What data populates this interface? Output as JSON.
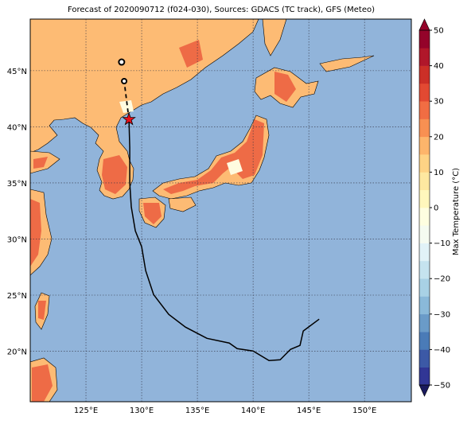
{
  "title": "Forecast of 2020090712 (f024-030), Sources: GDACS (TC track), GFS (Meteo)",
  "map": {
    "lon_range": [
      120,
      154.2
    ],
    "lat_range": [
      15.5,
      49.6
    ],
    "lon_ticks": [
      {
        "value": 125,
        "label": "125°E"
      },
      {
        "value": 130,
        "label": "130°E"
      },
      {
        "value": 135,
        "label": "135°E"
      },
      {
        "value": 140,
        "label": "140°E"
      },
      {
        "value": 145,
        "label": "145°E"
      },
      {
        "value": 150,
        "label": "150°E"
      }
    ],
    "lat_ticks": [
      {
        "value": 20,
        "label": "20°N"
      },
      {
        "value": 25,
        "label": "25°N"
      },
      {
        "value": 30,
        "label": "30°N"
      },
      {
        "value": 35,
        "label": "35°N"
      },
      {
        "value": 40,
        "label": "40°N"
      },
      {
        "value": 45,
        "label": "45°N"
      }
    ],
    "track": {
      "lon": [
        128.86,
        128.93,
        128.93,
        129.07,
        129.43,
        130.0,
        130.36,
        131.07,
        132.43,
        133.93,
        135.86,
        137.86,
        138.57,
        140.0,
        141.43,
        142.43,
        143.36,
        144.21,
        144.5,
        145.93
      ],
      "lat": [
        40.66,
        38.17,
        35.0,
        32.86,
        30.73,
        29.31,
        27.18,
        25.05,
        23.28,
        22.15,
        21.15,
        20.73,
        20.23,
        20.02,
        19.17,
        19.24,
        20.17,
        20.52,
        21.8,
        22.86
      ]
    },
    "extra_points": {
      "lon": [
        128.2,
        128.43
      ],
      "lat": [
        45.77,
        44.07
      ]
    }
  },
  "colorbar": {
    "label": "Max Temperature (°C)",
    "range": [
      -50,
      50
    ],
    "ticks": [
      {
        "value": -50,
        "label": "−50"
      },
      {
        "value": -40,
        "label": "−40"
      },
      {
        "value": -30,
        "label": "−30"
      },
      {
        "value": -20,
        "label": "−20"
      },
      {
        "value": -10,
        "label": "−10"
      },
      0,
      10,
      20,
      30,
      40,
      50
    ],
    "colors": [
      "#313695",
      "#3c59a6",
      "#4a7bb7",
      "#6a9bc8",
      "#8ab9d9",
      "#a8d1e5",
      "#c5e3ef",
      "#e1f2f7",
      "#f5fbf0",
      "#fefee0",
      "#fff7bc",
      "#fee8a0",
      "#fed385",
      "#fdb56b",
      "#f89052",
      "#f16d43",
      "#e24932",
      "#cb2f27",
      "#b0172a",
      "#94032a"
    ]
  }
}
